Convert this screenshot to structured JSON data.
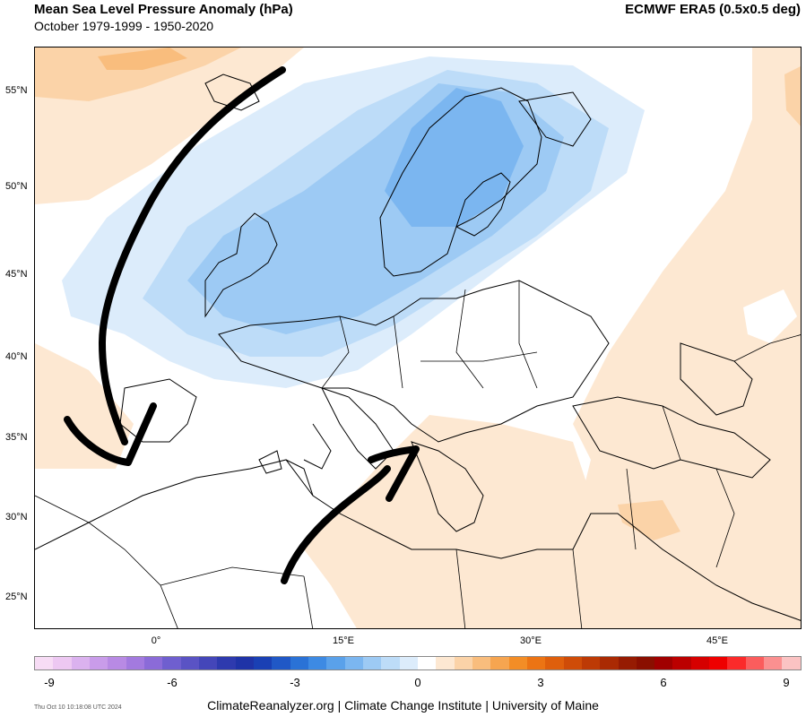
{
  "header": {
    "title": "Mean Sea Level Pressure Anomaly (hPa)",
    "subtitle": "October 1979-1999 - 1950-2020",
    "source": "ECMWF ERA5 (0.5x0.5 deg)"
  },
  "map": {
    "latitude_labels": [
      "55°N",
      "50°N",
      "45°N",
      "40°N",
      "35°N",
      "30°N",
      "25°N"
    ],
    "longitude_labels": [
      "0°",
      "15°E",
      "30°E",
      "45°E"
    ],
    "region": "Europe / North Africa / Middle East",
    "anomaly_areas": [
      {
        "name": "negative-anomaly-north-atlantic-scandinavia",
        "sign": "negative",
        "min_hpa": -2
      },
      {
        "name": "positive-anomaly-northwest-atlantic",
        "sign": "positive",
        "max_hpa": 1.5
      },
      {
        "name": "positive-anomaly-east",
        "sign": "positive",
        "max_hpa": 1
      },
      {
        "name": "positive-anomaly-mediterranean-north-africa",
        "sign": "positive",
        "max_hpa": 0.8
      }
    ],
    "annotations": [
      {
        "name": "arrow-atlantic-to-iberia",
        "style": "black hand-drawn arrow"
      },
      {
        "name": "arrow-africa-to-balkans",
        "style": "black hand-drawn arrow"
      }
    ]
  },
  "colorbar": {
    "tick_labels": [
      "-9",
      "-6",
      "-3",
      "0",
      "3",
      "6",
      "9"
    ],
    "tick_values": [
      -9,
      -6,
      -3,
      0,
      3,
      6,
      9
    ],
    "colors": [
      "#f7dcf5",
      "#edc8f2",
      "#dbb2ef",
      "#c99cea",
      "#b88ae4",
      "#a37adf",
      "#8b6bd8",
      "#6f5fcf",
      "#5a53c4",
      "#4446b9",
      "#2e3aae",
      "#1f33a7",
      "#1a40b4",
      "#2058c6",
      "#2a72d6",
      "#3d8ae3",
      "#5aa1ea",
      "#7bb6f0",
      "#9dcaf4",
      "#bddcf8",
      "#dcecfb",
      "#ffffff",
      "#fde8d2",
      "#fbd3a8",
      "#f9bd7d",
      "#f6a550",
      "#f38d26",
      "#ec7414",
      "#df5f0c",
      "#cf4c08",
      "#bd3a05",
      "#aa2a03",
      "#961b02",
      "#8a0f00",
      "#a00000",
      "#bb0000",
      "#d60000",
      "#ee0000",
      "#fb2a2a",
      "#fb5d5d",
      "#fb9090",
      "#fbc3c3"
    ]
  },
  "footer": {
    "credit": "ClimateReanalyzer.org | Climate Change Institute | University of Maine",
    "timestamp": "Thu Oct 10 10:18:08 UTC 2024"
  }
}
